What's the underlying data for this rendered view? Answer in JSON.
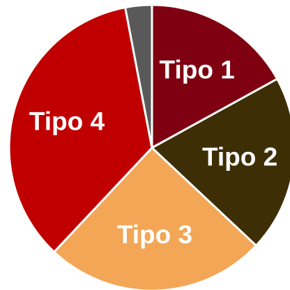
{
  "chart_data": {
    "type": "pie",
    "categories": [
      "Tipo 1",
      "Tipo 2",
      "Tipo 3",
      "Tipo 4",
      null
    ],
    "values": [
      17,
      20,
      25,
      35,
      3
    ],
    "colors": [
      "#7f0010",
      "#3d2e05",
      "#f3a655",
      "#c00000",
      "#595959"
    ]
  }
}
